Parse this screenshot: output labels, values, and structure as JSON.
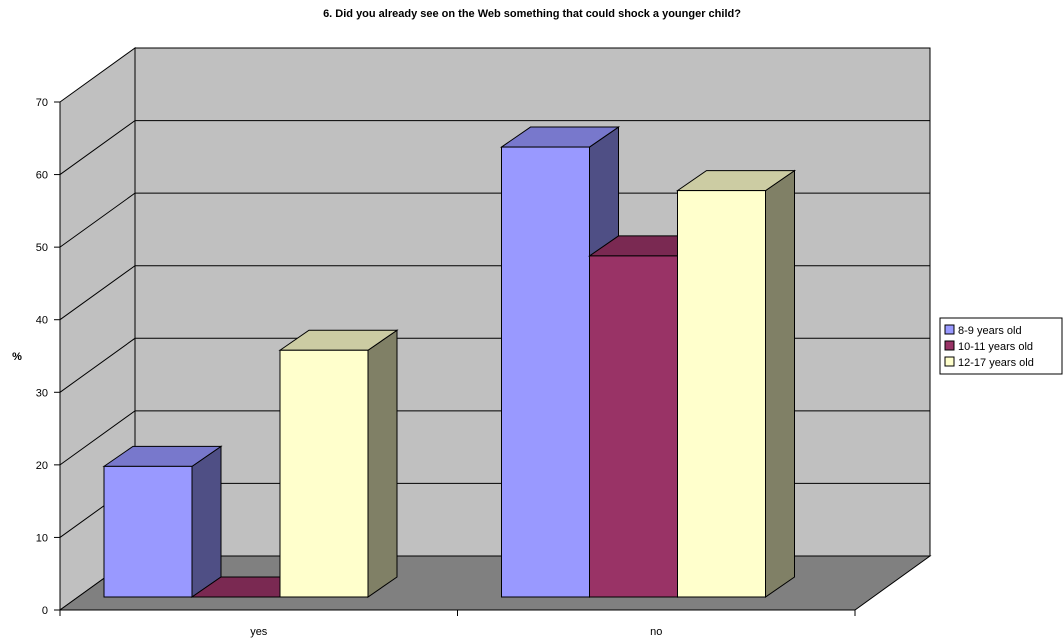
{
  "chart_data": {
    "type": "bar",
    "title": "6. Did you already see on the Web something that could shock a younger child?",
    "ylabel": "%",
    "xlabel": "",
    "ylim": [
      0,
      70
    ],
    "yticks": [
      0,
      10,
      20,
      30,
      40,
      50,
      60,
      70
    ],
    "categories": [
      "yes",
      "no"
    ],
    "series": [
      {
        "name": "8-9 years old",
        "values": [
          18,
          62
        ],
        "color": "#9999ff",
        "side_color": "#4f4f85",
        "top_color": "#7878cc"
      },
      {
        "name": "10-11 years old",
        "values": [
          0,
          47
        ],
        "color": "#993366",
        "side_color": "#5a1e3c",
        "top_color": "#7a2952"
      },
      {
        "name": "12-17 years old",
        "values": [
          34,
          56
        ],
        "color": "#ffffcc",
        "side_color": "#808066",
        "top_color": "#cccca3"
      }
    ],
    "grid": true,
    "legend_position": "right",
    "style": "3d-clustered-column",
    "wall_color": "#c0c0c0",
    "floor_color": "#808080"
  }
}
